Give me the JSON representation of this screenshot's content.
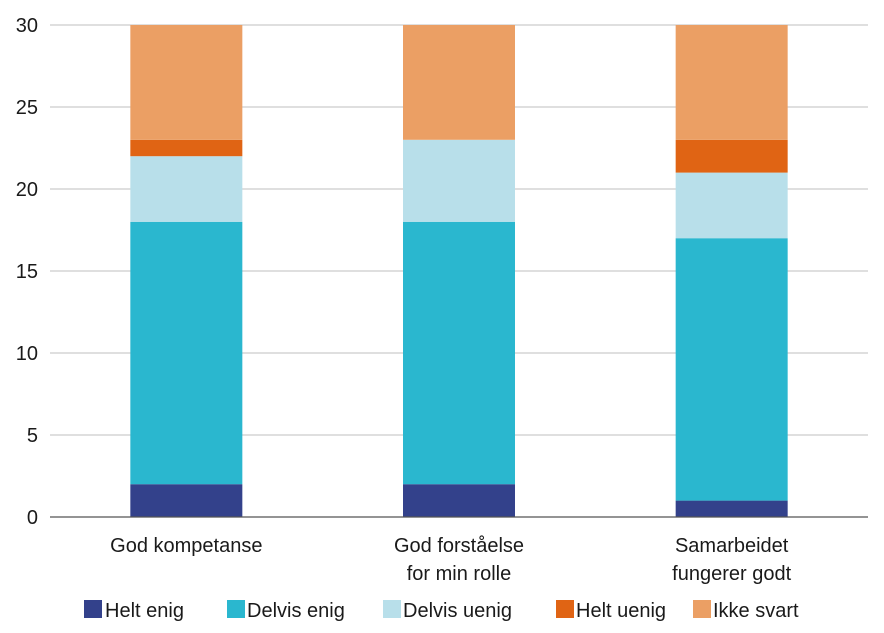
{
  "chart_data": {
    "type": "bar",
    "stacked": true,
    "title": "",
    "xlabel": "",
    "ylabel": "",
    "ylim": [
      0,
      30
    ],
    "yticks": [
      0,
      5,
      10,
      15,
      20,
      25,
      30
    ],
    "grid": true,
    "legend": "bottom",
    "categories": [
      [
        "God kompetanse"
      ],
      [
        "God forståelse",
        "for min rolle"
      ],
      [
        "Samarbeidet",
        "fungerer godt"
      ]
    ],
    "series": [
      {
        "name": "Helt enig",
        "color": "#33418b",
        "values": [
          2,
          2,
          1
        ]
      },
      {
        "name": "Delvis enig",
        "color": "#2ab7cf",
        "values": [
          16,
          16,
          16
        ]
      },
      {
        "name": "Delvis uenig",
        "color": "#b8dfea",
        "values": [
          4,
          5,
          4
        ]
      },
      {
        "name": "Helt uenig",
        "color": "#e06414",
        "values": [
          1,
          0,
          2
        ]
      },
      {
        "name": "Ikke svart",
        "color": "#eb9f64",
        "values": [
          7,
          7,
          7
        ]
      }
    ]
  }
}
